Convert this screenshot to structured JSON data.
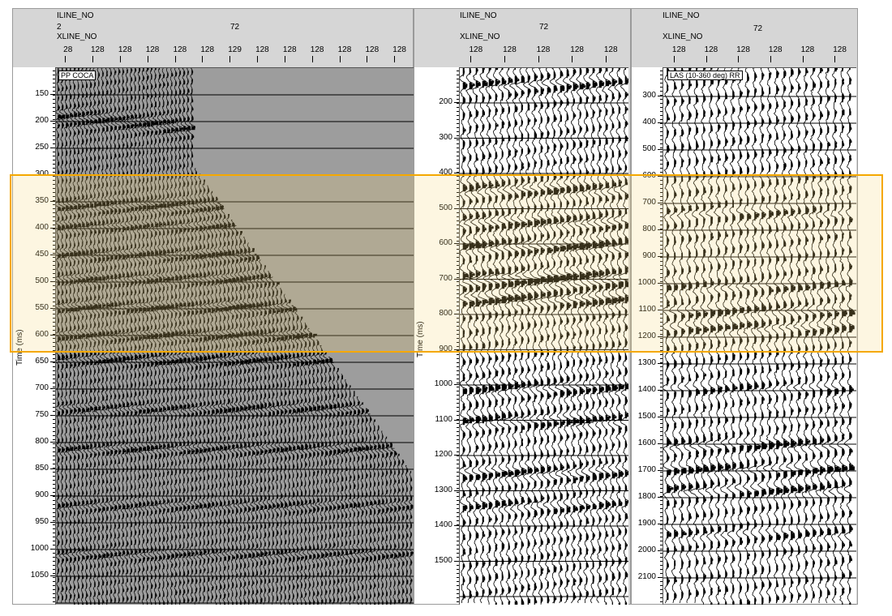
{
  "panels": [
    {
      "iline_label": "ILINE_NO",
      "iline_value": "2",
      "xline_label": "XLINE_NO",
      "center_value": "72",
      "xline_ticks": [
        "28",
        "128",
        "128",
        "128",
        "128",
        "128",
        "129",
        "128",
        "128",
        "128",
        "128",
        "128",
        "128"
      ],
      "time_ticks": [
        "150",
        "200",
        "250",
        "300",
        "350",
        "400",
        "450",
        "500",
        "550",
        "600",
        "650",
        "700",
        "750",
        "800",
        "850",
        "900",
        "950",
        "1000",
        "1050"
      ],
      "y_axis_label": "Time (ms)",
      "section_tag": "PP COCA"
    },
    {
      "iline_label": "ILINE_NO",
      "iline_value": "",
      "xline_label": "XLINE_NO",
      "center_value": "72",
      "xline_ticks": [
        "128",
        "128",
        "128",
        "128",
        "128"
      ],
      "time_ticks": [
        "200",
        "300",
        "400",
        "500",
        "600",
        "700",
        "800",
        "900",
        "1000",
        "1100",
        "1200",
        "1300",
        "1400",
        "1500"
      ],
      "y_axis_label": "Time (ms)",
      "section_tag": ""
    },
    {
      "iline_label": "ILINE_NO",
      "iline_value": "",
      "xline_label": "XLINE_NO",
      "center_value": "72",
      "xline_ticks": [
        "128",
        "128",
        "128",
        "128",
        "128",
        "128"
      ],
      "time_ticks": [
        "300",
        "400",
        "500",
        "600",
        "700",
        "800",
        "900",
        "1000",
        "1100",
        "1200",
        "1300",
        "1400",
        "1500",
        "1600",
        "1700",
        "1800",
        "1900",
        "2000",
        "2100"
      ],
      "y_axis_label": "",
      "section_tag": "LAS (10-360 deg) RR"
    }
  ],
  "colors": {
    "highlight": "#f5a800",
    "panel_bg": "#d6d6d6",
    "trace": "#000000"
  }
}
